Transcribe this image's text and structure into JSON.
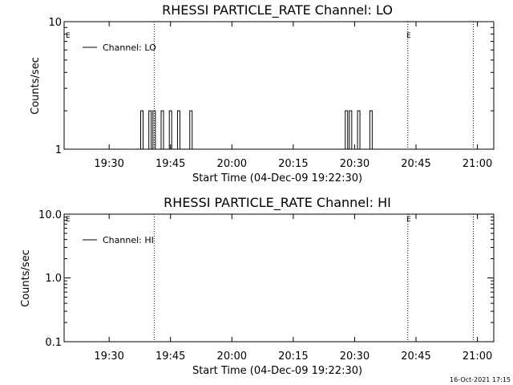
{
  "footer_timestamp": "16-Oct-2021 17:15",
  "chart_data": [
    {
      "type": "line",
      "title": "RHESSI PARTICLE_RATE Channel: LO",
      "xlabel": "Start Time (04-Dec-09 19:22:30)",
      "ylabel": "Counts/sec",
      "yscale": "log",
      "ylim": [
        1,
        10
      ],
      "ytick_labels": [
        "1",
        "10"
      ],
      "xtick_labels": [
        "19:30",
        "19:45",
        "20:00",
        "20:15",
        "20:30",
        "20:45",
        "21:00"
      ],
      "xlim_minutes": [
        19.0,
        124.0
      ],
      "vertical_markers": [
        {
          "time": "19:41",
          "style": "dotted"
        },
        {
          "time": "20:43",
          "style": "dotted",
          "label": "E"
        },
        {
          "time": "20:59",
          "style": "dotted"
        }
      ],
      "left_marker_label": "E",
      "legend": {
        "position": "top-left",
        "entries": [
          "Channel: LO"
        ]
      },
      "series": [
        {
          "name": "Channel: LO",
          "spikes": [
            {
              "time": "19:38",
              "value": 2
            },
            {
              "time": "19:40",
              "value": 2
            },
            {
              "time": "19:41",
              "value": 2
            },
            {
              "time": "19:43",
              "value": 2
            },
            {
              "time": "19:45",
              "value": 2
            },
            {
              "time": "19:47",
              "value": 2
            },
            {
              "time": "19:50",
              "value": 2
            },
            {
              "time": "20:28",
              "value": 2
            },
            {
              "time": "20:29",
              "value": 2
            },
            {
              "time": "20:31",
              "value": 2
            },
            {
              "time": "20:34",
              "value": 2
            }
          ]
        }
      ]
    },
    {
      "type": "line",
      "title": "RHESSI PARTICLE_RATE Channel: HI",
      "xlabel": "Start Time (04-Dec-09 19:22:30)",
      "ylabel": "Counts/sec",
      "yscale": "log",
      "ylim": [
        0.1,
        10
      ],
      "ytick_labels": [
        "0.1",
        "1.0",
        "10.0"
      ],
      "xtick_labels": [
        "19:30",
        "19:45",
        "20:00",
        "20:15",
        "20:30",
        "20:45",
        "21:00"
      ],
      "xlim_minutes": [
        19.0,
        124.0
      ],
      "vertical_markers": [
        {
          "time": "19:41",
          "style": "dotted"
        },
        {
          "time": "20:43",
          "style": "dotted",
          "label": "E"
        },
        {
          "time": "20:59",
          "style": "dotted"
        }
      ],
      "left_marker_label": "E",
      "legend": {
        "position": "top-left",
        "entries": [
          "Channel: HI"
        ]
      },
      "series": [
        {
          "name": "Channel: HI",
          "spikes": []
        }
      ]
    }
  ]
}
